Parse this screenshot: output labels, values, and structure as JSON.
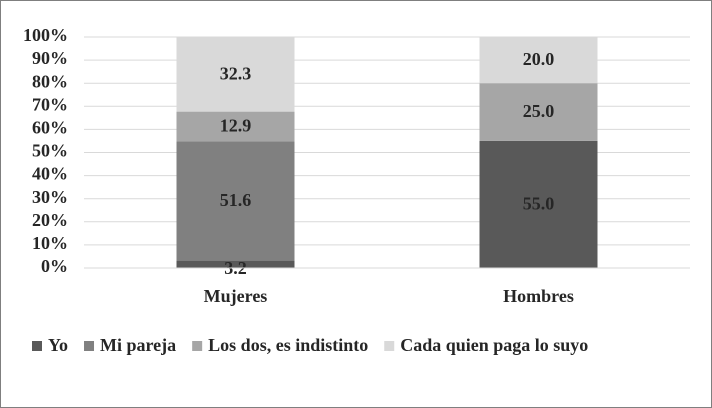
{
  "chart_data": {
    "type": "stacked-bar-100",
    "categories": [
      "Mujeres",
      "Hombres"
    ],
    "series": [
      {
        "name": "Yo",
        "color": "#595959",
        "values": [
          3.2,
          55.0
        ],
        "value_labels": [
          "3.2",
          "55.0"
        ]
      },
      {
        "name": "Mi pareja",
        "color": "#808080",
        "values": [
          51.6,
          null
        ],
        "value_labels": [
          "51.6",
          null
        ]
      },
      {
        "name": "Los dos, es indistinto",
        "color": "#a6a6a6",
        "values": [
          12.9,
          25.0
        ],
        "value_labels": [
          "12.9",
          "25.0"
        ]
      },
      {
        "name": "Cada quien paga lo suyo",
        "color": "#d9d9d9",
        "values": [
          32.3,
          20.0
        ],
        "value_labels": [
          "32.3",
          "20.0"
        ]
      }
    ],
    "ylim": [
      0,
      100
    ],
    "yticks": [
      {
        "value": 0,
        "label": "0%"
      },
      {
        "value": 10,
        "label": "10%"
      },
      {
        "value": 20,
        "label": "20%"
      },
      {
        "value": 30,
        "label": "30%"
      },
      {
        "value": 40,
        "label": "40%"
      },
      {
        "value": 50,
        "label": "50%"
      },
      {
        "value": 60,
        "label": "60%"
      },
      {
        "value": 70,
        "label": "70%"
      },
      {
        "value": 80,
        "label": "80%"
      },
      {
        "value": 90,
        "label": "90%"
      },
      {
        "value": 100,
        "label": "100%"
      }
    ],
    "grid": true,
    "legend": "bottom"
  }
}
